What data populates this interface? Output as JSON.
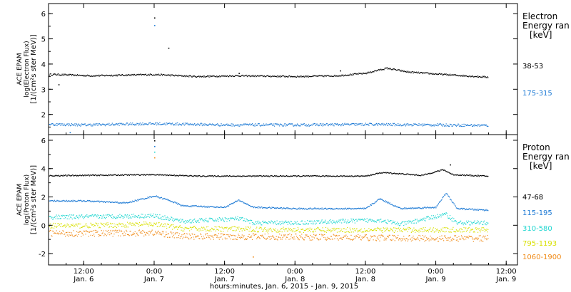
{
  "chart_data": [
    {
      "type": "scatter",
      "title": "",
      "ylabel_lines": [
        "ACE EPAM",
        "log(Electron Flux)",
        "[1/(cm²s ster MeV)]"
      ],
      "legend_title_lines": [
        "Electron",
        "Energy ran",
        "[keV]"
      ],
      "ylim": [
        1.2,
        6.4
      ],
      "yticks": [
        2,
        3,
        4,
        5,
        6
      ],
      "series": [
        {
          "name": "38-53",
          "color": "#000000",
          "base": 3.6,
          "anchors": [
            [
              0.0,
              3.62
            ],
            [
              0.3,
              3.6
            ],
            [
              0.55,
              3.55
            ],
            [
              1.0,
              3.6
            ],
            [
              1.3,
              3.52
            ],
            [
              1.6,
              3.55
            ],
            [
              2.0,
              3.52
            ],
            [
              2.3,
              3.55
            ],
            [
              2.5,
              3.65
            ],
            [
              2.65,
              3.85
            ],
            [
              2.8,
              3.7
            ],
            [
              3.0,
              3.62
            ],
            [
              3.2,
              3.55
            ],
            [
              3.35,
              3.5
            ]
          ]
        },
        {
          "name": "175-315",
          "color": "#1a78d4",
          "base": 1.65,
          "anchors": [
            [
              0.0,
              1.65
            ],
            [
              0.5,
              1.6
            ],
            [
              1.0,
              1.65
            ],
            [
              1.5,
              1.6
            ],
            [
              2.0,
              1.6
            ],
            [
              2.5,
              1.62
            ],
            [
              3.0,
              1.6
            ],
            [
              3.35,
              1.58
            ]
          ]
        }
      ],
      "outliers": [
        {
          "x": 1.0,
          "y": 5.85,
          "color": "#000000"
        },
        {
          "x": 1.0,
          "y": 5.55,
          "color": "#1a78d4"
        },
        {
          "x": 1.1,
          "y": 4.65,
          "color": "#000000"
        },
        {
          "x": 0.32,
          "y": 3.2,
          "color": "#000000"
        },
        {
          "x": 0.4,
          "y": 1.3,
          "color": "#1a78d4"
        },
        {
          "x": 1.6,
          "y": 3.65,
          "color": "#000000"
        },
        {
          "x": 2.32,
          "y": 3.75,
          "color": "#000000"
        }
      ]
    },
    {
      "type": "scatter",
      "title": "",
      "ylabel_lines": [
        "ACE EPAM",
        "log(Proton Flux)",
        "[1/(cm²s ster MeV)]"
      ],
      "legend_title_lines": [
        "Proton",
        "Energy ran",
        "[keV]"
      ],
      "ylim": [
        -2.8,
        6.4
      ],
      "yticks": [
        -2,
        0,
        2,
        4,
        6
      ],
      "series": [
        {
          "name": "47-68",
          "color": "#000000",
          "base": 3.5,
          "anchors": [
            [
              0.0,
              3.5
            ],
            [
              0.5,
              3.55
            ],
            [
              1.0,
              3.6
            ],
            [
              1.3,
              3.5
            ],
            [
              2.0,
              3.5
            ],
            [
              2.5,
              3.5
            ],
            [
              2.62,
              3.75
            ],
            [
              2.9,
              3.55
            ],
            [
              3.05,
              3.95
            ],
            [
              3.12,
              3.6
            ],
            [
              3.35,
              3.5
            ]
          ]
        },
        {
          "name": "115-195",
          "color": "#1a78d4",
          "base": 1.4,
          "anchors": [
            [
              0.0,
              1.5
            ],
            [
              0.25,
              1.75
            ],
            [
              0.5,
              1.75
            ],
            [
              0.8,
              1.6
            ],
            [
              1.0,
              2.1
            ],
            [
              1.1,
              1.8
            ],
            [
              1.2,
              1.4
            ],
            [
              1.5,
              1.3
            ],
            [
              1.6,
              1.8
            ],
            [
              1.7,
              1.3
            ],
            [
              2.0,
              1.2
            ],
            [
              2.5,
              1.2
            ],
            [
              2.6,
              1.9
            ],
            [
              2.75,
              1.2
            ],
            [
              3.0,
              1.3
            ],
            [
              3.07,
              2.3
            ],
            [
              3.15,
              1.2
            ],
            [
              3.35,
              1.1
            ]
          ]
        },
        {
          "name": "310-580",
          "color": "#1fd6d0",
          "base": 0.4,
          "anchors": [
            [
              0.0,
              0.5
            ],
            [
              0.3,
              0.6
            ],
            [
              1.0,
              0.7
            ],
            [
              1.1,
              0.5
            ],
            [
              1.2,
              0.3
            ],
            [
              1.6,
              0.5
            ],
            [
              1.7,
              0.2
            ],
            [
              2.0,
              0.2
            ],
            [
              2.6,
              0.4
            ],
            [
              2.75,
              0.1
            ],
            [
              3.07,
              0.8
            ],
            [
              3.15,
              0.2
            ],
            [
              3.35,
              0.2
            ]
          ]
        },
        {
          "name": "795-1193",
          "color": "#d8e000",
          "base": -0.1,
          "anchors": [
            [
              0.0,
              0.0
            ],
            [
              0.5,
              0.0
            ],
            [
              1.0,
              0.1
            ],
            [
              1.2,
              -0.2
            ],
            [
              2.0,
              -0.3
            ],
            [
              2.5,
              -0.3
            ],
            [
              3.0,
              -0.3
            ],
            [
              3.35,
              -0.3
            ]
          ]
        },
        {
          "name": "1060-1900",
          "color": "#f08c1a",
          "base": -0.6,
          "anchors": [
            [
              0.0,
              -0.5
            ],
            [
              0.5,
              -0.55
            ],
            [
              1.0,
              -0.5
            ],
            [
              1.2,
              -0.75
            ],
            [
              2.0,
              -0.8
            ],
            [
              2.5,
              -0.85
            ],
            [
              3.0,
              -0.9
            ],
            [
              3.35,
              -0.9
            ]
          ]
        }
      ],
      "outliers": [
        {
          "x": 1.0,
          "y": 6.0,
          "color": "#000000"
        },
        {
          "x": 1.0,
          "y": 5.6,
          "color": "#1a78d4"
        },
        {
          "x": 1.0,
          "y": 5.2,
          "color": "#1fd6d0"
        },
        {
          "x": 1.0,
          "y": 4.8,
          "color": "#f08c1a"
        },
        {
          "x": 3.1,
          "y": 4.3,
          "color": "#000000"
        },
        {
          "x": 1.7,
          "y": -2.2,
          "color": "#f08c1a"
        }
      ]
    }
  ],
  "x_axis": {
    "ticks": [
      {
        "t": 0.5,
        "time": "12:00",
        "date": "Jan. 6"
      },
      {
        "t": 1.0,
        "time": "0:00",
        "date": "Jan. 7"
      },
      {
        "t": 1.5,
        "time": "12:00",
        "date": "Jan. 7"
      },
      {
        "t": 2.0,
        "time": "0:00",
        "date": "Jan. 8"
      },
      {
        "t": 2.5,
        "time": "12:00",
        "date": "Jan. 8"
      },
      {
        "t": 3.0,
        "time": "0:00",
        "date": "Jan. 9"
      },
      {
        "t": 3.5,
        "time": "12:00",
        "date": "Jan. 9"
      }
    ],
    "xlabel": "hours:minutes, Jan.  6, 2015 - Jan.  9, 2015",
    "xlim_days": [
      0.25,
      3.58
    ],
    "data_end_days": 3.37
  },
  "colors": {
    "axis": "#000000",
    "background": "#ffffff"
  }
}
